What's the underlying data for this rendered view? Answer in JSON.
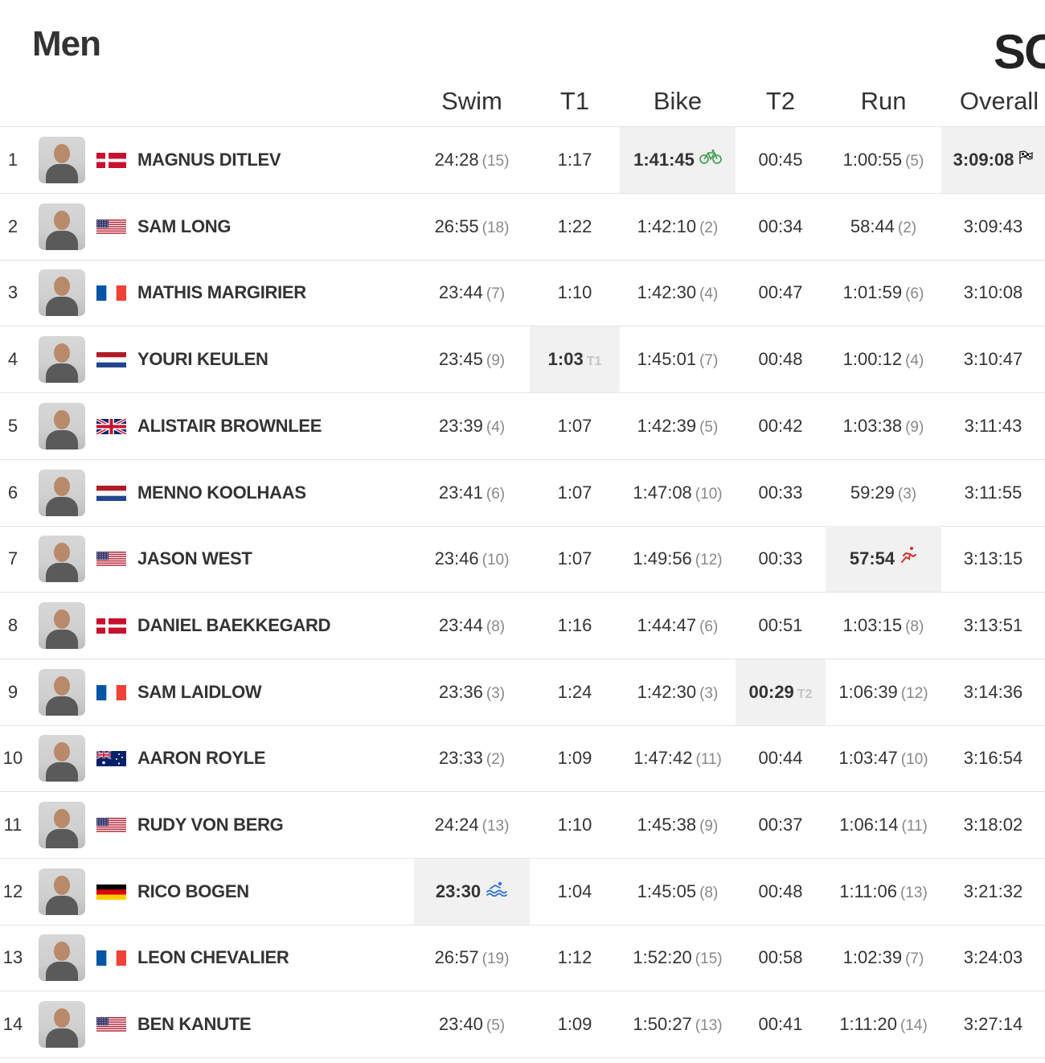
{
  "page": {
    "title": "Men",
    "corner_text": "SO"
  },
  "columns": [
    "Swim",
    "T1",
    "Bike",
    "T2",
    "Run",
    "Overall"
  ],
  "rows": [
    {
      "pos": "1",
      "name": "MAGNUS DITLEV",
      "flag": "denmark",
      "swim": "24:28",
      "swim_rank": "(15)",
      "t1": "1:17",
      "bike": "1:41:45",
      "bike_icon": "bike-icon",
      "t2": "00:45",
      "run": "1:00:55",
      "run_rank": "(5)",
      "overall": "3:09:08",
      "overall_icon": "finish-flag-icon"
    },
    {
      "pos": "2",
      "name": "SAM LONG",
      "flag": "usa",
      "swim": "26:55",
      "swim_rank": "(18)",
      "t1": "1:22",
      "bike": "1:42:10",
      "bike_rank": "(2)",
      "t2": "00:34",
      "run": "58:44",
      "run_rank": "(2)",
      "overall": "3:09:43"
    },
    {
      "pos": "3",
      "name": "MATHIS MARGIRIER",
      "flag": "france",
      "swim": "23:44",
      "swim_rank": "(7)",
      "t1": "1:10",
      "bike": "1:42:30",
      "bike_rank": "(4)",
      "t2": "00:47",
      "run": "1:01:59",
      "run_rank": "(6)",
      "overall": "3:10:08"
    },
    {
      "pos": "4",
      "name": "YOURI KEULEN",
      "flag": "netherlands",
      "swim": "23:45",
      "swim_rank": "(9)",
      "t1": "1:03",
      "t1_badge": "T1",
      "bike": "1:45:01",
      "bike_rank": "(7)",
      "t2": "00:48",
      "run": "1:00:12",
      "run_rank": "(4)",
      "overall": "3:10:47"
    },
    {
      "pos": "5",
      "name": "ALISTAIR BROWNLEE",
      "flag": "uk",
      "swim": "23:39",
      "swim_rank": "(4)",
      "t1": "1:07",
      "bike": "1:42:39",
      "bike_rank": "(5)",
      "t2": "00:42",
      "run": "1:03:38",
      "run_rank": "(9)",
      "overall": "3:11:43"
    },
    {
      "pos": "6",
      "name": "MENNO KOOLHAAS",
      "flag": "netherlands",
      "swim": "23:41",
      "swim_rank": "(6)",
      "t1": "1:07",
      "bike": "1:47:08",
      "bike_rank": "(10)",
      "t2": "00:33",
      "run": "59:29",
      "run_rank": "(3)",
      "overall": "3:11:55"
    },
    {
      "pos": "7",
      "name": "JASON WEST",
      "flag": "usa",
      "swim": "23:46",
      "swim_rank": "(10)",
      "t1": "1:07",
      "bike": "1:49:56",
      "bike_rank": "(12)",
      "t2": "00:33",
      "run": "57:54",
      "run_icon": "run-icon",
      "overall": "3:13:15"
    },
    {
      "pos": "8",
      "name": "DANIEL BAEKKEGARD",
      "flag": "denmark",
      "swim": "23:44",
      "swim_rank": "(8)",
      "t1": "1:16",
      "bike": "1:44:47",
      "bike_rank": "(6)",
      "t2": "00:51",
      "run": "1:03:15",
      "run_rank": "(8)",
      "overall": "3:13:51"
    },
    {
      "pos": "9",
      "name": "SAM LAIDLOW",
      "flag": "france",
      "swim": "23:36",
      "swim_rank": "(3)",
      "t1": "1:24",
      "bike": "1:42:30",
      "bike_rank": "(3)",
      "t2": "00:29",
      "t2_badge": "T2",
      "run": "1:06:39",
      "run_rank": "(12)",
      "overall": "3:14:36"
    },
    {
      "pos": "10",
      "name": "AARON ROYLE",
      "flag": "australia",
      "swim": "23:33",
      "swim_rank": "(2)",
      "t1": "1:09",
      "bike": "1:47:42",
      "bike_rank": "(11)",
      "t2": "00:44",
      "run": "1:03:47",
      "run_rank": "(10)",
      "overall": "3:16:54"
    },
    {
      "pos": "11",
      "name": "RUDY VON BERG",
      "flag": "usa",
      "swim": "24:24",
      "swim_rank": "(13)",
      "t1": "1:10",
      "bike": "1:45:38",
      "bike_rank": "(9)",
      "t2": "00:37",
      "run": "1:06:14",
      "run_rank": "(11)",
      "overall": "3:18:02"
    },
    {
      "pos": "12",
      "name": "RICO BOGEN",
      "flag": "germany",
      "swim": "23:30",
      "swim_icon": "swim-icon",
      "t1": "1:04",
      "bike": "1:45:05",
      "bike_rank": "(8)",
      "t2": "00:48",
      "run": "1:11:06",
      "run_rank": "(13)",
      "overall": "3:21:32"
    },
    {
      "pos": "13",
      "name": "LEON CHEVALIER",
      "flag": "france",
      "swim": "26:57",
      "swim_rank": "(19)",
      "t1": "1:12",
      "bike": "1:52:20",
      "bike_rank": "(15)",
      "t2": "00:58",
      "run": "1:02:39",
      "run_rank": "(7)",
      "overall": "3:24:03"
    },
    {
      "pos": "14",
      "name": "BEN KANUTE",
      "flag": "usa",
      "swim": "23:40",
      "swim_rank": "(5)",
      "t1": "1:09",
      "bike": "1:50:27",
      "bike_rank": "(13)",
      "t2": "00:41",
      "run": "1:11:20",
      "run_rank": "(14)",
      "overall": "3:27:14"
    }
  ],
  "colors": {
    "best_bg": "#f1f1f1",
    "bike_icon": "#3a9a4a",
    "run_icon": "#d0312d",
    "swim_icon": "#2f6fd1"
  }
}
